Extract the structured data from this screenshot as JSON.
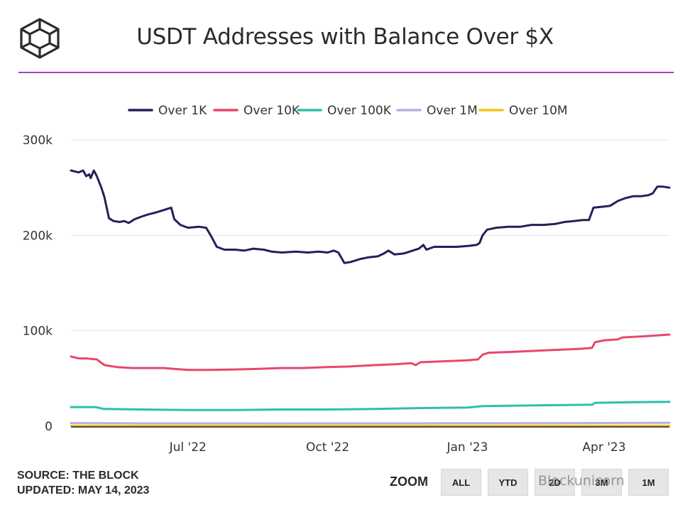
{
  "header": {
    "logo": "the-block-cube-logo",
    "title": "USDT Addresses with Balance Over $X",
    "accent_color": "#a43fd3"
  },
  "footer": {
    "source": "SOURCE: THE BLOCK",
    "updated": "UPDATED: MAY 14, 2023"
  },
  "zoom": {
    "label": "ZOOM",
    "buttons": [
      "ALL",
      "YTD",
      "2D",
      "3M",
      "1M"
    ]
  },
  "watermark": "Blockunicorn",
  "chart_data": {
    "type": "line",
    "title": "USDT Addresses with Balance Over $X",
    "legend_position": "top-center",
    "grid": true,
    "x_range": [
      "2022-04-15",
      "2023-05-14"
    ],
    "ylim": [
      0,
      300000
    ],
    "y_ticks": [
      0,
      100000,
      200000,
      300000
    ],
    "y_tick_labels": [
      "0",
      "100k",
      "200k",
      "300k"
    ],
    "x_ticks": [
      "2022-07-01",
      "2022-10-01",
      "2023-01-01",
      "2023-04-01"
    ],
    "x_tick_labels": [
      "Jul '22",
      "Oct '22",
      "Jan '23",
      "Apr '23"
    ],
    "series": [
      {
        "name": "Over 1K",
        "color": "#24205a",
        "points": [
          [
            "2022-04-15",
            268000
          ],
          [
            "2022-04-20",
            266000
          ],
          [
            "2022-04-23",
            268000
          ],
          [
            "2022-04-25",
            262000
          ],
          [
            "2022-04-27",
            264000
          ],
          [
            "2022-04-28",
            260000
          ],
          [
            "2022-04-30",
            268000
          ],
          [
            "2022-05-02",
            262000
          ],
          [
            "2022-05-05",
            250000
          ],
          [
            "2022-05-07",
            240000
          ],
          [
            "2022-05-10",
            218000
          ],
          [
            "2022-05-13",
            215000
          ],
          [
            "2022-05-17",
            214000
          ],
          [
            "2022-05-20",
            215000
          ],
          [
            "2022-05-23",
            213000
          ],
          [
            "2022-05-27",
            217000
          ],
          [
            "2022-06-01",
            220000
          ],
          [
            "2022-06-05",
            222000
          ],
          [
            "2022-06-10",
            224000
          ],
          [
            "2022-06-14",
            226000
          ],
          [
            "2022-06-18",
            228000
          ],
          [
            "2022-06-20",
            229000
          ],
          [
            "2022-06-22",
            217000
          ],
          [
            "2022-06-26",
            211000
          ],
          [
            "2022-07-01",
            208000
          ],
          [
            "2022-07-08",
            209000
          ],
          [
            "2022-07-13",
            208000
          ],
          [
            "2022-07-16",
            200000
          ],
          [
            "2022-07-20",
            188000
          ],
          [
            "2022-07-25",
            185000
          ],
          [
            "2022-08-01",
            185000
          ],
          [
            "2022-08-07",
            184000
          ],
          [
            "2022-08-13",
            186000
          ],
          [
            "2022-08-20",
            185000
          ],
          [
            "2022-08-25",
            183000
          ],
          [
            "2022-09-01",
            182000
          ],
          [
            "2022-09-10",
            183000
          ],
          [
            "2022-09-18",
            182000
          ],
          [
            "2022-09-25",
            183000
          ],
          [
            "2022-10-01",
            182000
          ],
          [
            "2022-10-05",
            184000
          ],
          [
            "2022-10-08",
            182000
          ],
          [
            "2022-10-12",
            171000
          ],
          [
            "2022-10-16",
            172000
          ],
          [
            "2022-10-22",
            175000
          ],
          [
            "2022-10-28",
            177000
          ],
          [
            "2022-11-03",
            178000
          ],
          [
            "2022-11-07",
            181000
          ],
          [
            "2022-11-10",
            184000
          ],
          [
            "2022-11-14",
            180000
          ],
          [
            "2022-11-20",
            181000
          ],
          [
            "2022-11-26",
            184000
          ],
          [
            "2022-11-30",
            186000
          ],
          [
            "2022-12-03",
            190000
          ],
          [
            "2022-12-05",
            185000
          ],
          [
            "2022-12-10",
            188000
          ],
          [
            "2022-12-18",
            188000
          ],
          [
            "2022-12-25",
            188000
          ],
          [
            "2023-01-02",
            189000
          ],
          [
            "2023-01-07",
            190000
          ],
          [
            "2023-01-09",
            192000
          ],
          [
            "2023-01-11",
            200000
          ],
          [
            "2023-01-14",
            206000
          ],
          [
            "2023-01-20",
            208000
          ],
          [
            "2023-01-28",
            209000
          ],
          [
            "2023-02-05",
            209000
          ],
          [
            "2023-02-12",
            211000
          ],
          [
            "2023-02-20",
            211000
          ],
          [
            "2023-02-28",
            212000
          ],
          [
            "2023-03-06",
            214000
          ],
          [
            "2023-03-12",
            215000
          ],
          [
            "2023-03-18",
            216000
          ],
          [
            "2023-03-22",
            216000
          ],
          [
            "2023-03-25",
            229000
          ],
          [
            "2023-03-31",
            230000
          ],
          [
            "2023-04-05",
            231000
          ],
          [
            "2023-04-10",
            236000
          ],
          [
            "2023-04-15",
            239000
          ],
          [
            "2023-04-20",
            241000
          ],
          [
            "2023-04-25",
            241000
          ],
          [
            "2023-04-30",
            242000
          ],
          [
            "2023-05-03",
            244000
          ],
          [
            "2023-05-06",
            251000
          ],
          [
            "2023-05-10",
            251000
          ],
          [
            "2023-05-14",
            250000
          ]
        ]
      },
      {
        "name": "Over 10K",
        "color": "#e8476b",
        "points": [
          [
            "2022-04-15",
            73000
          ],
          [
            "2022-04-20",
            71000
          ],
          [
            "2022-04-25",
            71000
          ],
          [
            "2022-05-02",
            70000
          ],
          [
            "2022-05-07",
            64000
          ],
          [
            "2022-05-15",
            62000
          ],
          [
            "2022-05-25",
            61000
          ],
          [
            "2022-06-05",
            61000
          ],
          [
            "2022-06-15",
            61000
          ],
          [
            "2022-06-22",
            60000
          ],
          [
            "2022-07-01",
            59000
          ],
          [
            "2022-07-15",
            59000
          ],
          [
            "2022-08-01",
            59500
          ],
          [
            "2022-08-15",
            60000
          ],
          [
            "2022-09-01",
            61000
          ],
          [
            "2022-09-15",
            61000
          ],
          [
            "2022-10-01",
            62000
          ],
          [
            "2022-10-15",
            62500
          ],
          [
            "2022-11-01",
            64000
          ],
          [
            "2022-11-15",
            65000
          ],
          [
            "2022-11-25",
            66000
          ],
          [
            "2022-11-28",
            64000
          ],
          [
            "2022-12-01",
            67000
          ],
          [
            "2022-12-15",
            68000
          ],
          [
            "2023-01-01",
            69000
          ],
          [
            "2023-01-08",
            70000
          ],
          [
            "2023-01-11",
            75000
          ],
          [
            "2023-01-15",
            77000
          ],
          [
            "2023-02-01",
            78000
          ],
          [
            "2023-02-15",
            79000
          ],
          [
            "2023-03-01",
            80000
          ],
          [
            "2023-03-15",
            81000
          ],
          [
            "2023-03-24",
            82000
          ],
          [
            "2023-03-26",
            88000
          ],
          [
            "2023-04-01",
            90000
          ],
          [
            "2023-04-10",
            91000
          ],
          [
            "2023-04-13",
            93000
          ],
          [
            "2023-04-25",
            94000
          ],
          [
            "2023-05-05",
            95000
          ],
          [
            "2023-05-14",
            96000
          ]
        ]
      },
      {
        "name": "Over 100K",
        "color": "#2ebfa8",
        "points": [
          [
            "2022-04-15",
            20000
          ],
          [
            "2022-05-01",
            20000
          ],
          [
            "2022-05-07",
            18000
          ],
          [
            "2022-06-01",
            17500
          ],
          [
            "2022-07-01",
            17000
          ],
          [
            "2022-08-01",
            17000
          ],
          [
            "2022-09-01",
            17500
          ],
          [
            "2022-10-01",
            17500
          ],
          [
            "2022-11-01",
            18000
          ],
          [
            "2022-12-01",
            19000
          ],
          [
            "2023-01-01",
            19500
          ],
          [
            "2023-01-11",
            21000
          ],
          [
            "2023-02-01",
            21500
          ],
          [
            "2023-03-01",
            22000
          ],
          [
            "2023-03-24",
            22500
          ],
          [
            "2023-03-26",
            24500
          ],
          [
            "2023-04-15",
            25000
          ],
          [
            "2023-05-14",
            25500
          ]
        ]
      },
      {
        "name": "Over 1M",
        "color": "#b7aee6",
        "points": [
          [
            "2022-04-15",
            3300
          ],
          [
            "2022-06-01",
            3000
          ],
          [
            "2022-09-01",
            2900
          ],
          [
            "2022-12-01",
            3000
          ],
          [
            "2023-03-01",
            3200
          ],
          [
            "2023-05-14",
            3600
          ]
        ]
      },
      {
        "name": "Over 10M",
        "color": "#f5c518",
        "points": [
          [
            "2022-04-15",
            400
          ],
          [
            "2022-10-01",
            380
          ],
          [
            "2023-05-14",
            420
          ]
        ]
      }
    ]
  }
}
